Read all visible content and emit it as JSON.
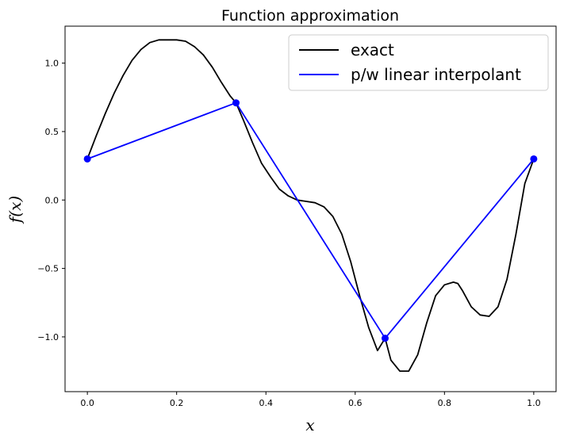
{
  "chart_data": {
    "type": "line",
    "title": "Function approximation",
    "xlabel": "x",
    "ylabel": "f(x)",
    "xlim": [
      -0.05,
      1.05
    ],
    "ylim": [
      -1.4,
      1.27
    ],
    "xticks": [
      0.0,
      0.2,
      0.4,
      0.6,
      0.8,
      1.0
    ],
    "xtick_labels": [
      "0.0",
      "0.2",
      "0.4",
      "0.6",
      "0.8",
      "1.0"
    ],
    "yticks": [
      1.0,
      0.5,
      0.0,
      -0.5,
      -1.0
    ],
    "ytick_labels": [
      "1.0",
      "0.5",
      "0.0",
      "−0.5",
      "−1.0"
    ],
    "grid": false,
    "legend_position": "top-right",
    "series": [
      {
        "name": "exact",
        "color": "#000000",
        "marker": "none",
        "x": [
          0.0,
          0.02,
          0.04,
          0.06,
          0.08,
          0.1,
          0.12,
          0.14,
          0.16,
          0.18,
          0.2,
          0.22,
          0.24,
          0.26,
          0.28,
          0.3,
          0.32,
          0.333,
          0.35,
          0.37,
          0.39,
          0.41,
          0.43,
          0.45,
          0.47,
          0.49,
          0.51,
          0.53,
          0.55,
          0.57,
          0.59,
          0.61,
          0.63,
          0.65,
          0.667,
          0.68,
          0.7,
          0.72,
          0.74,
          0.76,
          0.78,
          0.8,
          0.82,
          0.83,
          0.84,
          0.86,
          0.88,
          0.9,
          0.92,
          0.94,
          0.96,
          0.98,
          1.0
        ],
        "y": [
          0.3,
          0.47,
          0.63,
          0.78,
          0.91,
          1.02,
          1.1,
          1.15,
          1.17,
          1.17,
          1.17,
          1.16,
          1.12,
          1.06,
          0.97,
          0.86,
          0.76,
          0.71,
          0.58,
          0.42,
          0.27,
          0.17,
          0.08,
          0.03,
          0.0,
          -0.01,
          -0.02,
          -0.05,
          -0.12,
          -0.25,
          -0.45,
          -0.7,
          -0.93,
          -1.1,
          -1.01,
          -1.17,
          -1.25,
          -1.25,
          -1.13,
          -0.9,
          -0.7,
          -0.62,
          -0.6,
          -0.61,
          -0.66,
          -0.78,
          -0.84,
          -0.85,
          -0.78,
          -0.58,
          -0.25,
          0.12,
          0.3
        ]
      },
      {
        "name": "p/w linear interpolant",
        "color": "#0000ff",
        "marker": "circle",
        "x": [
          0.0,
          0.333,
          0.667,
          1.0
        ],
        "y": [
          0.3,
          0.71,
          -1.01,
          0.3
        ]
      }
    ]
  }
}
